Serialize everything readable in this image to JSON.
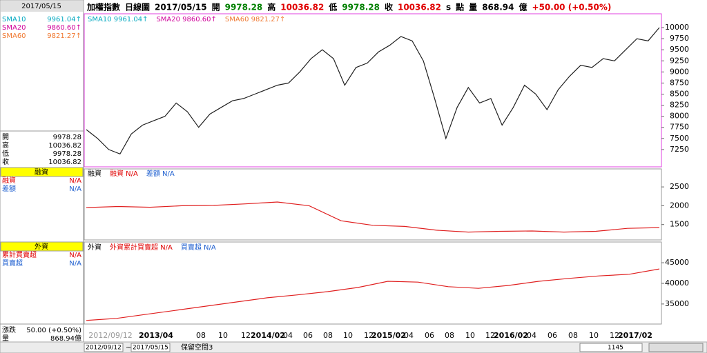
{
  "header": {
    "items": [
      {
        "text": "加權指數",
        "color": "#000000"
      },
      {
        "text": "日線圖",
        "color": "#000000"
      },
      {
        "text": "2017/05/15",
        "color": "#000000"
      },
      {
        "text": "開",
        "color": "#000000"
      },
      {
        "text": "9978.28",
        "color": "#008000"
      },
      {
        "text": "高",
        "color": "#000000"
      },
      {
        "text": "10036.82",
        "color": "#e00000"
      },
      {
        "text": "低",
        "color": "#000000"
      },
      {
        "text": "9978.28",
        "color": "#008000"
      },
      {
        "text": "收",
        "color": "#000000"
      },
      {
        "text": "10036.82",
        "color": "#e00000"
      },
      {
        "text": "s",
        "color": "#000000"
      },
      {
        "text": "點",
        "color": "#000000"
      },
      {
        "text": "量",
        "color": "#000000"
      },
      {
        "text": "868.94",
        "color": "#000000"
      },
      {
        "text": "億",
        "color": "#000000"
      },
      {
        "text": "+50.00 (+0.50%)",
        "color": "#e00000"
      }
    ]
  },
  "left_panel": {
    "date": "2017/05/15",
    "sma_rows": [
      {
        "name": "SMA10",
        "value": "9961.04↑",
        "color": "#00a8c0"
      },
      {
        "name": "SMA20",
        "value": "9860.60↑",
        "color": "#d0009a"
      },
      {
        "name": "SMA60",
        "value": "9821.27↑",
        "color": "#f07830"
      }
    ],
    "ohlc_rows": [
      {
        "name": "開",
        "value": "9978.28"
      },
      {
        "name": "高",
        "value": "10036.82"
      },
      {
        "name": "低",
        "value": "9978.28"
      },
      {
        "name": "收",
        "value": "10036.82"
      }
    ],
    "margin_title": "融資",
    "margin_rows": [
      {
        "name": "融資",
        "value": "N/A",
        "color": "#e00000"
      },
      {
        "name": "差額",
        "value": "N/A",
        "color": "#2060d0"
      }
    ],
    "foreign_title": "外資",
    "foreign_rows": [
      {
        "name": "累計買賣超",
        "value": "N/A",
        "color": "#e00000"
      },
      {
        "name": "買賣超",
        "value": "N/A",
        "color": "#2060d0"
      }
    ],
    "bottom_rows": [
      {
        "name": "漲跌",
        "value": "50.00 (+0.50%)"
      },
      {
        "name": "量",
        "value": "868.94億"
      }
    ]
  },
  "chart_data": [
    {
      "type": "line",
      "legend": [
        {
          "text": "SMA10 9961.04↑",
          "color": "#00a8c0"
        },
        {
          "text": "SMA20 9860.60↑",
          "color": "#d0009a"
        },
        {
          "text": "SMA60 9821.27↑",
          "color": "#f07830"
        }
      ],
      "color": "#202020",
      "values": [
        7700,
        7500,
        7250,
        7150,
        7600,
        7800,
        7900,
        8000,
        8300,
        8100,
        7750,
        8050,
        8200,
        8350,
        8400,
        8500,
        8600,
        8700,
        8750,
        9000,
        9300,
        9500,
        9300,
        8700,
        9100,
        9200,
        9450,
        9600,
        9800,
        9700,
        9250,
        8400,
        7500,
        8200,
        8650,
        8300,
        8400,
        7800,
        8200,
        8700,
        8500,
        8150,
        8600,
        8900,
        9150,
        9100,
        9300,
        9250,
        9500,
        9750,
        9700,
        10000
      ],
      "ylim": [
        6860,
        10280
      ],
      "yticks": [
        10000,
        9750,
        9500,
        9250,
        9000,
        8750,
        8500,
        8250,
        8000,
        7750,
        7500,
        7250
      ]
    },
    {
      "type": "line",
      "legend": [
        {
          "text": "融資",
          "color": "#000000"
        },
        {
          "text": "融資 N/A",
          "color": "#e00000"
        },
        {
          "text": "差額 N/A",
          "color": "#2060d0"
        }
      ],
      "color": "#e02020",
      "values": [
        1950,
        1980,
        1960,
        2000,
        2010,
        2050,
        2100,
        2000,
        1600,
        1480,
        1450,
        1350,
        1300,
        1320,
        1330,
        1300,
        1320,
        1400,
        1420
      ],
      "ylim": [
        1110,
        2960
      ],
      "yticks": [
        2500,
        2000,
        1500
      ]
    },
    {
      "type": "line",
      "legend": [
        {
          "text": "外資",
          "color": "#000000"
        },
        {
          "text": "外資累計買賣超 N/A",
          "color": "#e00000"
        },
        {
          "text": "買賣超 N/A",
          "color": "#2060d0"
        }
      ],
      "color": "#e02020",
      "values": [
        31000,
        31500,
        32500,
        33500,
        34500,
        35500,
        36500,
        37200,
        38000,
        39000,
        40500,
        40300,
        39200,
        38800,
        39500,
        40500,
        41200,
        41800,
        42200,
        43500
      ],
      "ylim": [
        30300,
        49700
      ],
      "yticks": [
        45000,
        40000,
        35000
      ]
    }
  ],
  "x_labels": [
    "2012/09/12",
    "2013/04",
    "08",
    "10",
    "12",
    "2014/02",
    "04",
    "06",
    "08",
    "10",
    "12",
    "2015/02",
    "04",
    "06",
    "08",
    "10",
    "12",
    "2016/02",
    "04",
    "06",
    "08",
    "10",
    "12",
    "2017/02"
  ],
  "status_bar": {
    "start": "2012/09/12",
    "sep": "~",
    "end": "2017/05/15",
    "space_label": "保留空間",
    "space_value": "3",
    "count": "1145"
  }
}
